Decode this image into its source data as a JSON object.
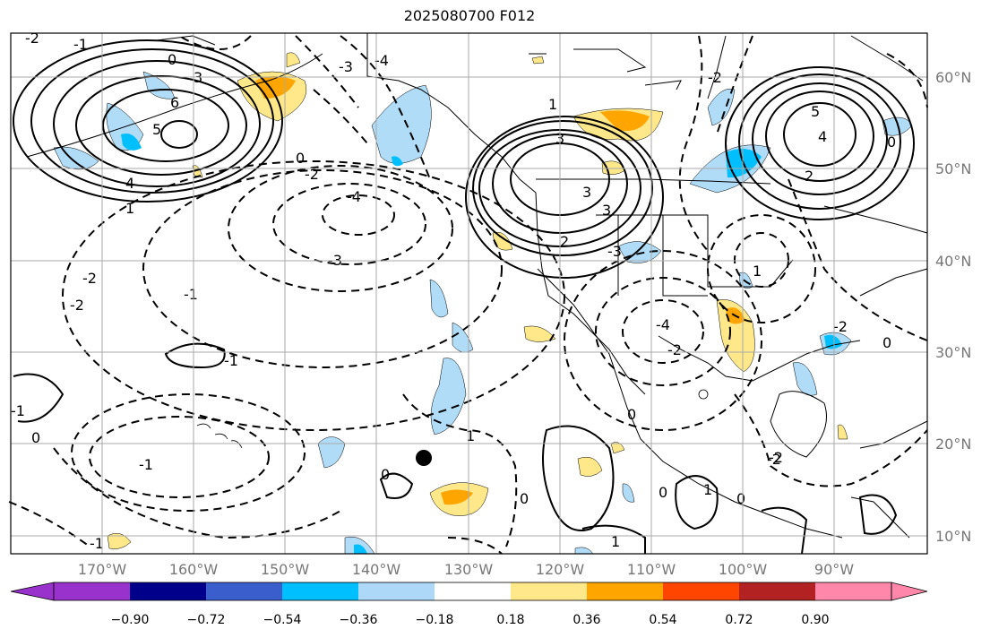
{
  "title": "2025080700 F012",
  "lat_labels": [
    "60°N",
    "50°N",
    "40°N",
    "30°N",
    "20°N",
    "10°N"
  ],
  "lon_labels": [
    "170°W",
    "160°W",
    "150°W",
    "140°W",
    "130°W",
    "120°W",
    "110°W",
    "100°W",
    "90°W"
  ],
  "colorbar": {
    "ticks": [
      "−0.90",
      "−0.72",
      "−0.54",
      "−0.36",
      "−0.18",
      "0.18",
      "0.36",
      "0.54",
      "0.72",
      "0.90"
    ],
    "colors": [
      "#9932cc",
      "#00008b",
      "#3a5fcd",
      "#00bfff",
      "#add8f8",
      "#ffffff",
      "#ffe88a",
      "#ffa500",
      "#ff4500",
      "#b22222",
      "#ff88aa"
    ]
  },
  "contour_labels": [
    "-2",
    "-1",
    "0",
    "3",
    "-3",
    "-4",
    "6",
    "5",
    "-4",
    "1",
    "4",
    "0",
    "-2",
    "-1",
    "-2",
    "-3",
    "-2",
    "1",
    "3",
    "5",
    "4",
    "2",
    "3",
    "-2",
    "0",
    "-1",
    "3",
    "2",
    "-4",
    "0",
    "-1",
    "1",
    "-3",
    "-2",
    "-2",
    "0",
    "-1",
    "0",
    "1",
    "0",
    "-1",
    "-2",
    "1",
    "0",
    "0",
    "-2",
    "0",
    "1"
  ],
  "colors": {
    "fill_blue_light": "#b0dcf8",
    "fill_blue": "#00bfff",
    "fill_yellow": "#ffe88a",
    "fill_orange": "#ffa500"
  }
}
